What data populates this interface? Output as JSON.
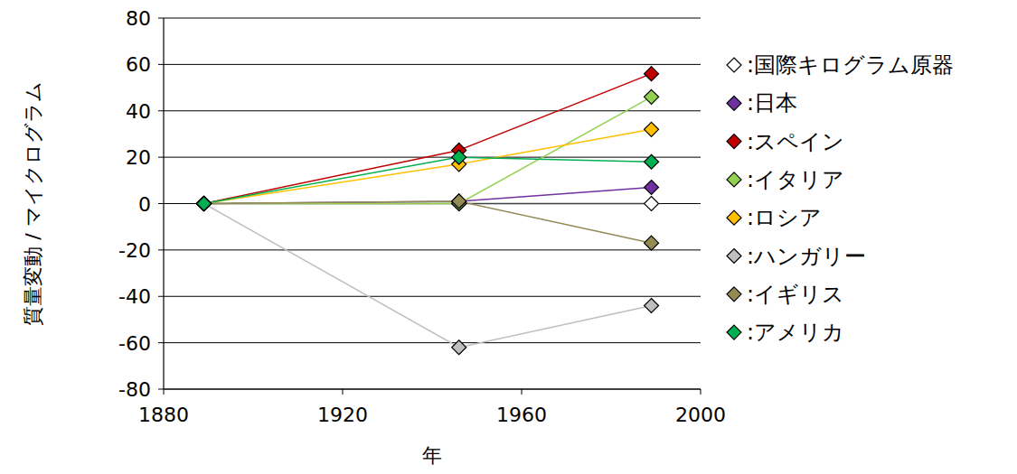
{
  "chart_data": {
    "type": "line",
    "x_label": "年",
    "y_label": "質量変動 / マイクログラム",
    "x": [
      1889,
      1946,
      1989
    ],
    "xlim": [
      1880,
      2000
    ],
    "xticks": [
      1880,
      1920,
      1960,
      2000
    ],
    "ylim": [
      -80,
      80
    ],
    "yticks": [
      -80,
      -60,
      -40,
      -20,
      0,
      20,
      40,
      60,
      80
    ],
    "grid": true,
    "legend": "right",
    "marker": "diamond",
    "series": [
      {
        "name": ":国際キログラム原器",
        "color": "#ffffff",
        "values": [
          0,
          0,
          0
        ]
      },
      {
        "name": ":日本",
        "color": "#7030a0",
        "values": [
          0,
          1,
          7
        ]
      },
      {
        "name": ":スペイン",
        "color": "#c00000",
        "values": [
          0,
          23,
          56
        ]
      },
      {
        "name": ":イタリア",
        "color": "#92d050",
        "values": [
          0,
          0,
          46
        ]
      },
      {
        "name": ":ロシア",
        "color": "#ffc000",
        "values": [
          0,
          17,
          32
        ]
      },
      {
        "name": ":ハンガリー",
        "color": "#bfbfbf",
        "values": [
          0,
          -62,
          -44
        ]
      },
      {
        "name": ":イギリス",
        "color": "#948a54",
        "values": [
          0,
          1,
          -17
        ]
      },
      {
        "name": ":アメリカ",
        "color": "#00b050",
        "values": [
          0,
          20,
          18
        ]
      }
    ]
  }
}
